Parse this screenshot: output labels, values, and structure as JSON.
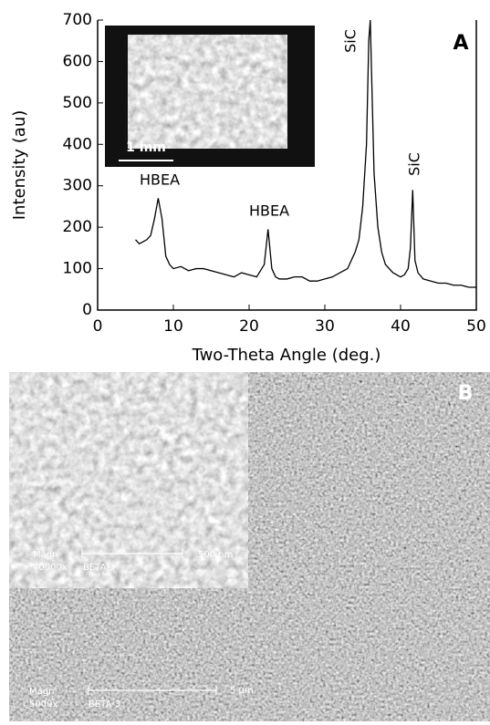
{
  "chart_data": {
    "type": "line",
    "ylabel": "Intensity (au)",
    "xlabel": "Two-Theta Angle (deg.)",
    "panel_label": "A",
    "inset_scale": "1 mm",
    "annotations": [
      "HBEA",
      "HBEA",
      "SiC",
      "SiC"
    ],
    "x": [
      5,
      5.5,
      6,
      6.5,
      7,
      7.5,
      8,
      8.5,
      9,
      9.5,
      10,
      11,
      12,
      13,
      14,
      15,
      16,
      17,
      18,
      19,
      20,
      21,
      22,
      22.5,
      23,
      23.5,
      24,
      25,
      26,
      27,
      28,
      29,
      30,
      31,
      32,
      33,
      34,
      34.5,
      35,
      35.5,
      35.8,
      36,
      36.2,
      36.5,
      37,
      37.5,
      38,
      39,
      40,
      40.5,
      41,
      41.3,
      41.6,
      41.9,
      42.3,
      43,
      44,
      45,
      46,
      47,
      48,
      49,
      50
    ],
    "values": [
      170,
      160,
      165,
      170,
      180,
      220,
      270,
      220,
      130,
      110,
      100,
      105,
      95,
      100,
      100,
      95,
      90,
      85,
      80,
      90,
      85,
      80,
      110,
      195,
      100,
      80,
      75,
      75,
      80,
      80,
      70,
      70,
      75,
      80,
      90,
      100,
      140,
      170,
      250,
      400,
      650,
      700,
      550,
      330,
      200,
      140,
      110,
      90,
      80,
      85,
      100,
      150,
      290,
      120,
      90,
      75,
      70,
      65,
      65,
      60,
      60,
      55,
      55
    ],
    "color": "#000000",
    "xlim": [
      0,
      50
    ],
    "xticks": [
      0,
      10,
      20,
      30,
      40,
      50
    ],
    "ylim": [
      0,
      700
    ],
    "yticks": [
      0,
      100,
      200,
      300,
      400,
      500,
      600,
      700
    ]
  },
  "panel_b": {
    "label": "B",
    "inset": {
      "magn": "Magn",
      "zoom": "40000x",
      "sample": "BETA-3",
      "scale": "500 nm"
    },
    "main": {
      "magn": "Magn",
      "zoom": "5000x",
      "sample": "BETA-3",
      "scale": "5 µm"
    }
  }
}
